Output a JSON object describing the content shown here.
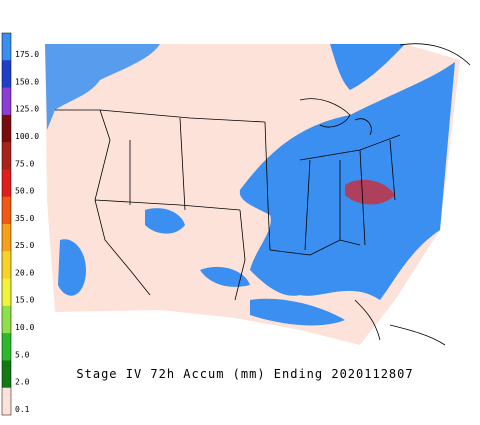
{
  "legend": {
    "levels": [
      {
        "label": "175.0",
        "color": "#3b8ff0"
      },
      {
        "label": "150.0",
        "color": "#1f3fc8"
      },
      {
        "label": "125.0",
        "color": "#8a3ed6"
      },
      {
        "label": "100.0",
        "color": "#7a0c0c"
      },
      {
        "label": "75.0",
        "color": "#a8231a"
      },
      {
        "label": "50.0",
        "color": "#e01e1e"
      },
      {
        "label": "35.0",
        "color": "#f05a14"
      },
      {
        "label": "25.0",
        "color": "#f7a01c"
      },
      {
        "label": "20.0",
        "color": "#f8d22a"
      },
      {
        "label": "15.0",
        "color": "#f2f23a"
      },
      {
        "label": "10.0",
        "color": "#8fe04a"
      },
      {
        "label": "5.0",
        "color": "#2db82d"
      },
      {
        "label": "2.0",
        "color": "#137a13"
      },
      {
        "label": "0.1",
        "color": "#fde2da"
      }
    ]
  },
  "title": "Stage IV 72h Accum (mm) Ending 2020112807"
}
